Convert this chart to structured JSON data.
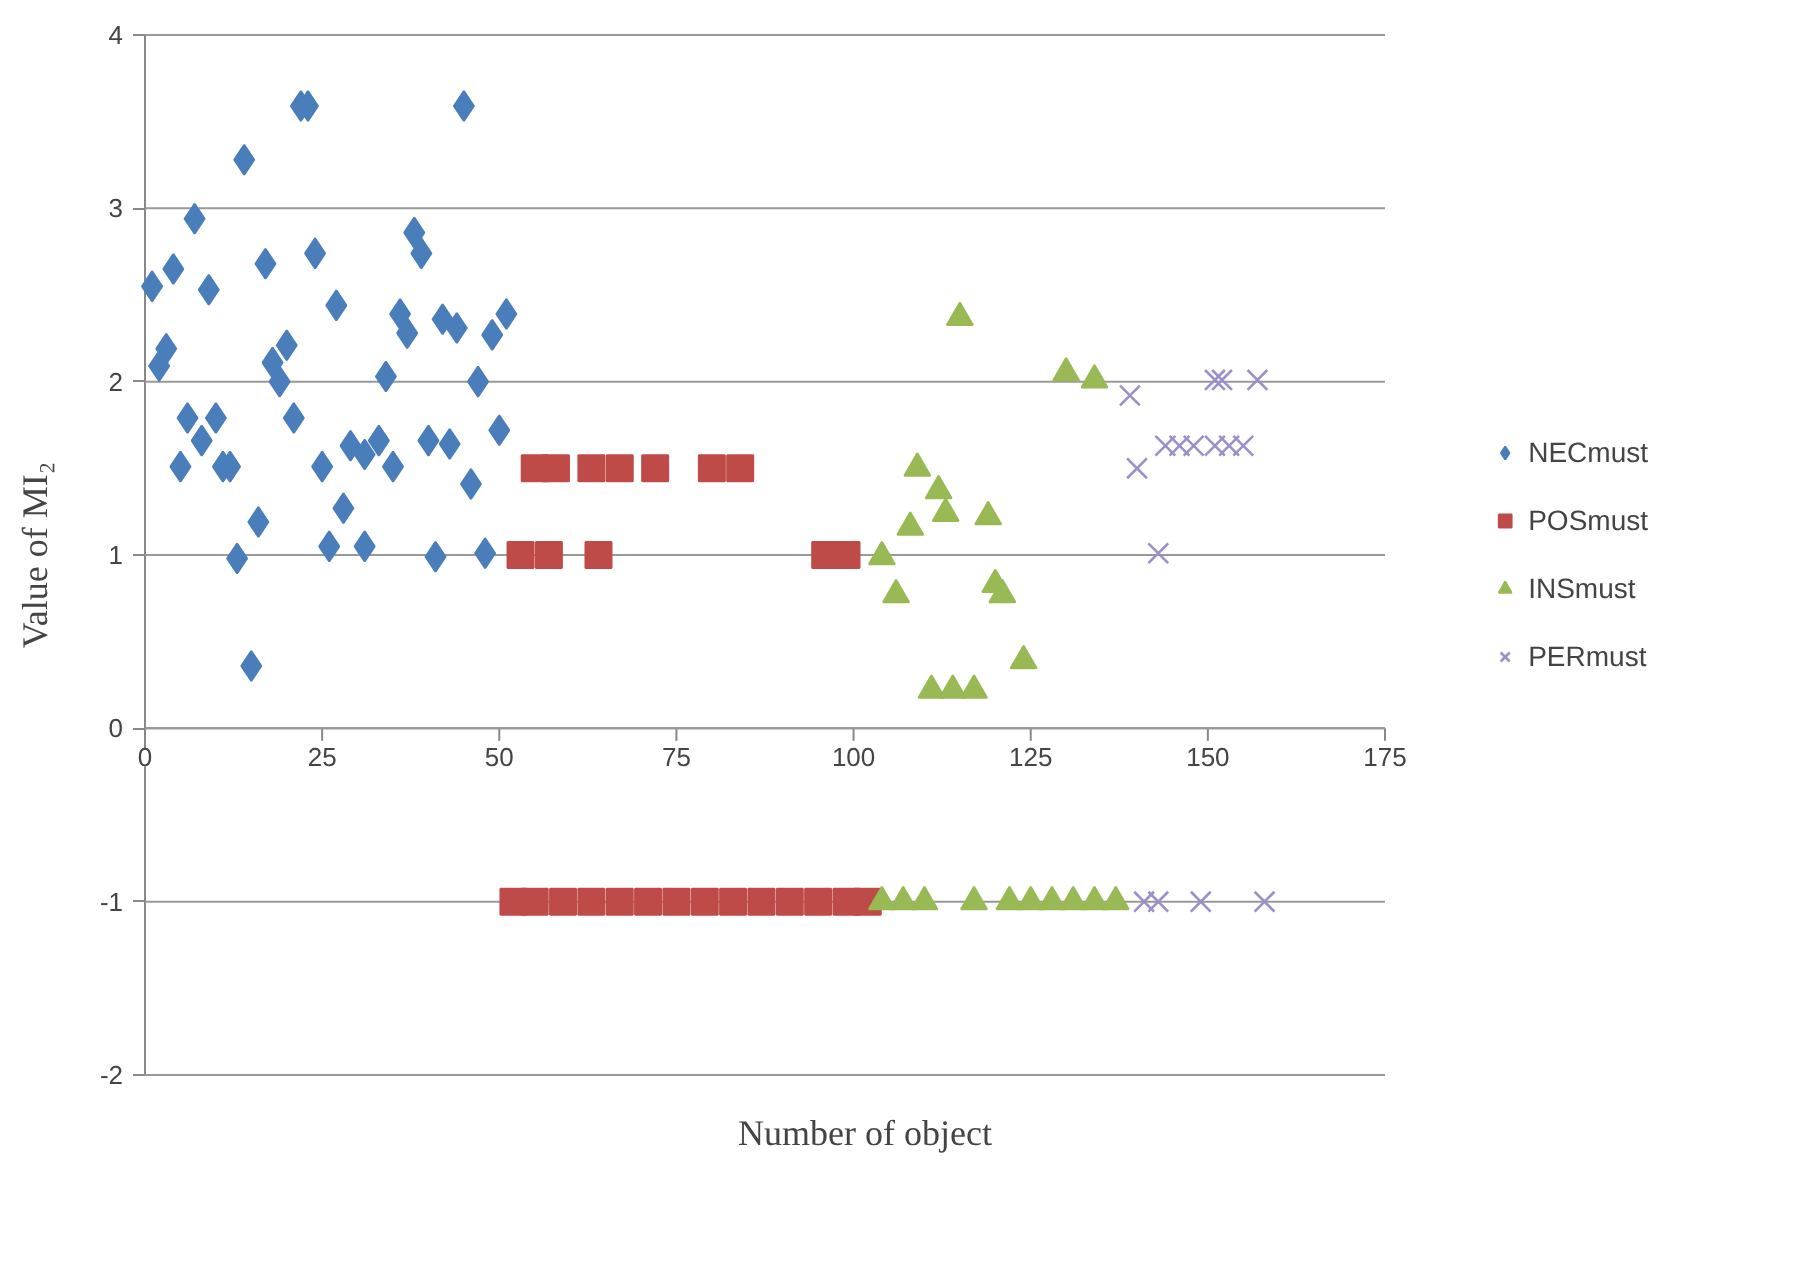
{
  "chart_data": {
    "type": "scatter",
    "xlabel": "Number of object",
    "ylabel": "Value of MI₂",
    "xlim": [
      0,
      175
    ],
    "ylim": [
      -2,
      4
    ],
    "xticks": [
      0,
      25,
      50,
      75,
      100,
      125,
      150,
      175
    ],
    "yticks": [
      -2,
      -1,
      0,
      1,
      2,
      3,
      4
    ],
    "grid": "y",
    "legend": "right",
    "series": [
      {
        "name": "NECmust",
        "color": "#4a7ebb",
        "marker": "diamond",
        "x": [
          1,
          2,
          3,
          4,
          5,
          6,
          7,
          8,
          9,
          10,
          11,
          12,
          13,
          14,
          15,
          16,
          17,
          18,
          19,
          20,
          21,
          22,
          23,
          24,
          25,
          26,
          27,
          28,
          29,
          31,
          33,
          31,
          34,
          35,
          36,
          37,
          38,
          39,
          40,
          41,
          42,
          44,
          43,
          45,
          46,
          47,
          48,
          49,
          50,
          51
        ],
        "values": [
          2.55,
          2.09,
          2.19,
          2.65,
          1.51,
          1.79,
          2.94,
          1.66,
          2.53,
          1.79,
          1.51,
          1.51,
          0.98,
          3.28,
          0.36,
          1.19,
          2.68,
          2.11,
          2.0,
          2.21,
          1.79,
          3.59,
          3.59,
          2.74,
          1.51,
          1.05,
          2.44,
          1.27,
          1.63,
          1.58,
          1.66,
          1.05,
          2.03,
          1.51,
          2.39,
          2.28,
          2.86,
          2.74,
          1.66,
          0.99,
          2.36,
          2.31,
          1.64,
          3.59,
          1.41,
          2.0,
          1.01,
          2.27,
          1.72,
          2.39
        ]
      },
      {
        "name": "POSmust",
        "color": "#be4b48",
        "marker": "square",
        "x": [
          55,
          58,
          63,
          67,
          72,
          80,
          84,
          53,
          57,
          64,
          96,
          99,
          52,
          55,
          59,
          63,
          67,
          71,
          75,
          79,
          83,
          87,
          91,
          95,
          99,
          102
        ],
        "values": [
          1.5,
          1.5,
          1.5,
          1.5,
          1.5,
          1.5,
          1.5,
          1,
          1,
          1,
          1,
          1,
          -1,
          -1,
          -1,
          -1,
          -1,
          -1,
          -1,
          -1,
          -1,
          -1,
          -1,
          -1,
          -1,
          -1
        ]
      },
      {
        "name": "INSmust",
        "color": "#98b954",
        "marker": "triangle",
        "x": [
          104,
          106,
          108,
          109,
          111,
          112,
          113,
          114,
          117,
          119,
          120,
          121,
          124,
          115,
          130,
          134,
          104,
          107,
          110,
          117,
          122,
          125,
          128,
          131,
          134,
          137
        ],
        "values": [
          0.99,
          0.77,
          1.16,
          1.5,
          0.22,
          1.37,
          1.24,
          0.22,
          0.22,
          1.22,
          0.83,
          0.77,
          0.39,
          2.37,
          2.05,
          2.01,
          -1,
          -1,
          -1,
          -1,
          -1,
          -1,
          -1,
          -1,
          -1,
          -1
        ]
      },
      {
        "name": "PERmust",
        "color": "#9d8fc8",
        "marker": "x",
        "x": [
          139,
          140,
          143,
          151,
          152,
          157,
          144,
          146,
          148,
          151,
          153,
          155,
          141,
          143,
          149,
          158
        ],
        "values": [
          1.92,
          1.5,
          1.01,
          2.01,
          2.01,
          2.01,
          1.63,
          1.63,
          1.63,
          1.63,
          1.63,
          1.63,
          -1,
          -1,
          -1,
          -1
        ]
      }
    ]
  }
}
